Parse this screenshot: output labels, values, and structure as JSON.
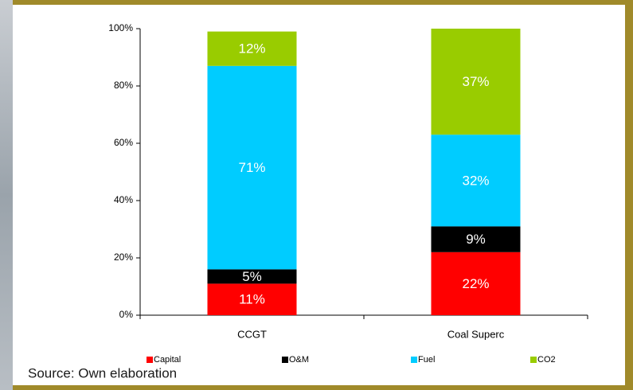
{
  "chart_data": {
    "type": "stacked-bar",
    "categories": [
      "CCGT",
      "Coal Superc"
    ],
    "series": [
      {
        "name": "Capital",
        "color": "#ff0000",
        "values": [
          11,
          22
        ],
        "value_labels": [
          "11%",
          "22%"
        ]
      },
      {
        "name": "O&M",
        "color": "#000000",
        "values": [
          5,
          9
        ],
        "value_labels": [
          "5%",
          "9%"
        ]
      },
      {
        "name": "Fuel",
        "color": "#00ccff",
        "values": [
          71,
          32
        ],
        "value_labels": [
          "71%",
          "32%"
        ]
      },
      {
        "name": "CO2",
        "color": "#99cc00",
        "values": [
          12,
          37
        ],
        "value_labels": [
          "12%",
          "37%"
        ]
      }
    ],
    "ylim": [
      0,
      100
    ],
    "yticks": [
      {
        "value": 0,
        "label": "0%"
      },
      {
        "value": 20,
        "label": "20%"
      },
      {
        "value": 40,
        "label": "40%"
      },
      {
        "value": 60,
        "label": "60%"
      },
      {
        "value": 80,
        "label": "80%"
      },
      {
        "value": 100,
        "label": "100%"
      }
    ],
    "legend": "bottom",
    "source": "Source: Own elaboration"
  }
}
